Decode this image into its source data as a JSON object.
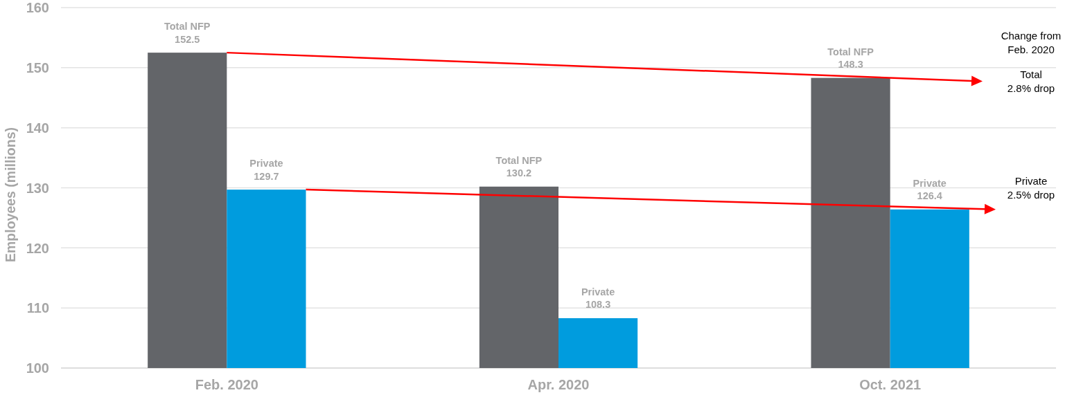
{
  "chart_data": {
    "type": "bar",
    "ylabel": "Employees (millions)",
    "categories": [
      "Feb. 2020",
      "Apr. 2020",
      "Oct. 2021"
    ],
    "series": [
      {
        "name": "Total NFP",
        "color": "#636569",
        "values": [
          152.5,
          130.2,
          148.3
        ]
      },
      {
        "name": "Private",
        "color": "#009cde",
        "values": [
          129.7,
          108.3,
          126.4
        ]
      }
    ],
    "ylim": [
      100,
      160
    ],
    "yticks": [
      100,
      110,
      120,
      130,
      140,
      150,
      160
    ],
    "grid": "y",
    "data_labels": true,
    "annotations": [
      "Change from\nFeb. 2020",
      "Total\n2.8% drop",
      "Private\n2.5% drop"
    ]
  }
}
